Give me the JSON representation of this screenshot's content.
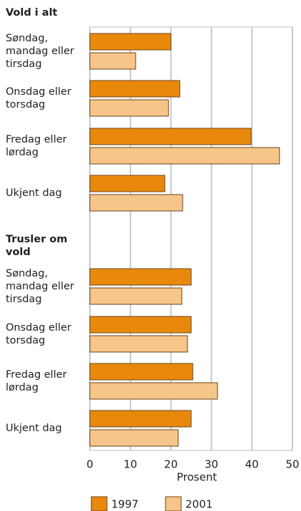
{
  "chart_data": {
    "type": "bar",
    "orientation": "horizontal",
    "groups": [
      {
        "title": "Vold i alt",
        "categories": [
          "Søndag,\nmandag eller\ntirsdag",
          "Onsdag eller\ntorsdag",
          "Fredag eller\nlørdag",
          "Ukjent dag"
        ]
      },
      {
        "title": "Trusler om\nvold",
        "categories": [
          "Søndag,\nmandag eller\ntirsdag",
          "Onsdag eller\ntorsdag",
          "Fredag eller\nlørdag",
          "Ukjent dag"
        ]
      }
    ],
    "series": [
      {
        "name": "1997",
        "color": "#e8890c",
        "values": [
          20,
          22.2,
          39.8,
          18.5,
          25,
          25,
          25.4,
          25
        ]
      },
      {
        "name": "2001",
        "color": "#f5c58a",
        "values": [
          11.3,
          19.4,
          46.8,
          22.9,
          22.7,
          24.1,
          31.5,
          21.8
        ]
      }
    ],
    "xlim": [
      0,
      50
    ],
    "xticks": [
      0,
      10,
      20,
      30,
      40,
      50
    ],
    "xlabel": "Prosent",
    "grid": true
  }
}
